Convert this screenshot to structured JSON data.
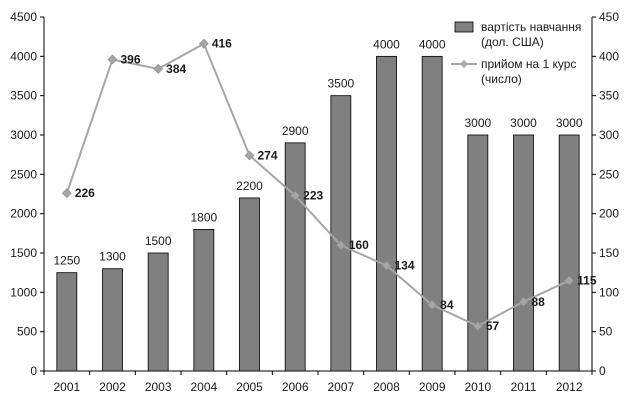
{
  "chart_data": {
    "type": "bar",
    "categories": [
      "2001",
      "2002",
      "2003",
      "2004",
      "2005",
      "2006",
      "2007",
      "2008",
      "2009",
      "2010",
      "2011",
      "2012"
    ],
    "series": [
      {
        "name_lines": [
          "вартість навчання",
          "(дол. США)"
        ],
        "type": "bar",
        "axis": "left",
        "color": "#808080",
        "values": [
          1250,
          1300,
          1500,
          1800,
          2200,
          2900,
          3500,
          4000,
          4000,
          3000,
          3000,
          3000
        ]
      },
      {
        "name_lines": [
          "прийом на 1 курс",
          "(число)"
        ],
        "type": "line",
        "axis": "right",
        "color": "#a6a6a6",
        "marker": "diamond",
        "values": [
          226,
          396,
          384,
          416,
          274,
          223,
          160,
          134,
          84,
          57,
          88,
          115
        ]
      }
    ],
    "y_left": {
      "min": 0,
      "max": 4500,
      "ticks": [
        0,
        500,
        1000,
        1500,
        2000,
        2500,
        3000,
        3500,
        4000,
        4500
      ]
    },
    "y_right": {
      "min": 0,
      "max": 450,
      "ticks": [
        0,
        50,
        100,
        150,
        200,
        250,
        300,
        350,
        400,
        450
      ]
    },
    "legend_position": "top-right",
    "grid": false
  }
}
